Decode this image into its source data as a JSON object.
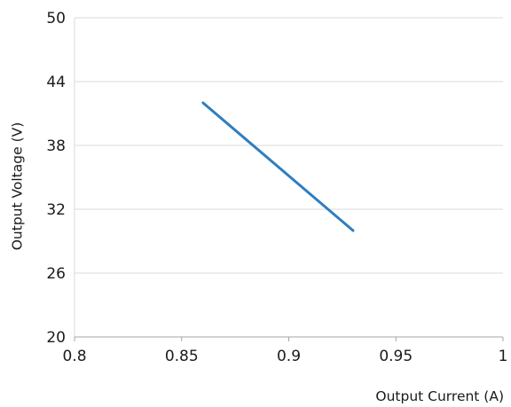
{
  "chart_data": {
    "type": "line",
    "title": "",
    "xlabel": "Output Current (A)",
    "ylabel": "Output Voltage (V)",
    "xlim": [
      0.8,
      1
    ],
    "ylim": [
      20,
      50
    ],
    "x_ticks": [
      "0.8",
      "0.85",
      "0.9",
      "0.95",
      "1"
    ],
    "y_ticks": [
      "20",
      "26",
      "32",
      "38",
      "44",
      "50"
    ],
    "grid": "horizontal",
    "legend": "none",
    "series": [
      {
        "color": "#2e7ec0",
        "points": [
          {
            "x": 0.86,
            "y": 42
          },
          {
            "x": 0.93,
            "y": 30
          }
        ]
      }
    ]
  }
}
